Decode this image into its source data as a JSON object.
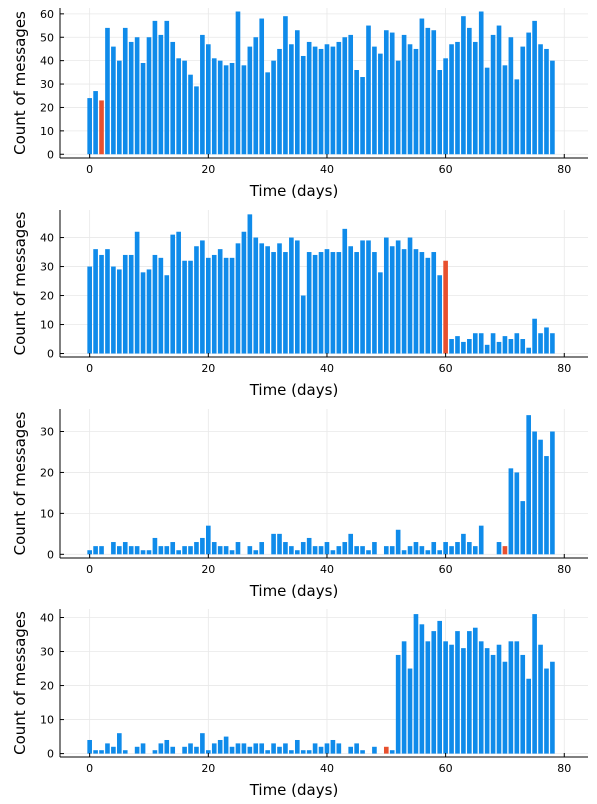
{
  "colors": {
    "bar": "#0f8bea",
    "highlight": "#e8502e"
  },
  "chart_data": [
    {
      "type": "bar",
      "xlabel": "Time (days)",
      "ylabel": "Count of messages",
      "xlim": [
        -5,
        84
      ],
      "ylim": [
        -1.6,
        62.5
      ],
      "xticks": [
        0,
        20,
        40,
        60,
        80
      ],
      "yticks": [
        0,
        10,
        20,
        30,
        40,
        50,
        60
      ],
      "grid": true,
      "legend": "none",
      "highlight_day": 2,
      "values": [
        24,
        27,
        23,
        54,
        46,
        40,
        54,
        48,
        50,
        39,
        50,
        57,
        51,
        57,
        48,
        41,
        40,
        34,
        29,
        51,
        47,
        41,
        40,
        38,
        39,
        61,
        38,
        46,
        50,
        58,
        35,
        40,
        45,
        59,
        47,
        53,
        42,
        48,
        46,
        45,
        47,
        46,
        48,
        50,
        51,
        36,
        33,
        55,
        46,
        43,
        53,
        52,
        40,
        51,
        47,
        45,
        58,
        54,
        53,
        36,
        41,
        47,
        48,
        59,
        54,
        48,
        61,
        37,
        51,
        55,
        38,
        50,
        32,
        46,
        52,
        57,
        47,
        45,
        40
      ]
    },
    {
      "type": "bar",
      "xlabel": "Time (days)",
      "ylabel": "Count of messages",
      "xlim": [
        -5,
        84
      ],
      "ylim": [
        -1.2,
        49.5
      ],
      "xticks": [
        0,
        20,
        40,
        60,
        80
      ],
      "yticks": [
        0,
        10,
        20,
        30,
        40
      ],
      "grid": true,
      "legend": "none",
      "highlight_day": 60,
      "values": [
        30,
        36,
        34,
        36,
        30,
        29,
        34,
        34,
        42,
        28,
        29,
        34,
        33,
        27,
        41,
        42,
        32,
        32,
        37,
        39,
        33,
        34,
        36,
        33,
        33,
        38,
        42,
        48,
        40,
        38,
        37,
        35,
        38,
        35,
        40,
        39,
        20,
        35,
        34,
        35,
        36,
        35,
        35,
        43,
        37,
        35,
        39,
        39,
        35,
        28,
        40,
        37,
        39,
        36,
        40,
        36,
        35,
        33,
        35,
        27,
        32,
        5,
        6,
        4,
        5,
        7,
        7,
        3,
        7,
        4,
        6,
        5,
        7,
        5,
        2,
        12,
        7,
        9,
        7
      ]
    },
    {
      "type": "bar",
      "xlabel": "Time (days)",
      "ylabel": "Count of messages",
      "xlim": [
        -5,
        84
      ],
      "ylim": [
        -0.9,
        35.5
      ],
      "xticks": [
        0,
        20,
        40,
        60,
        80
      ],
      "yticks": [
        0,
        10,
        20,
        30
      ],
      "grid": true,
      "legend": "none",
      "highlight_day": 70,
      "values": [
        1,
        2,
        2,
        0,
        3,
        2,
        3,
        2,
        2,
        1,
        1,
        4,
        2,
        2,
        3,
        1,
        2,
        2,
        3,
        4,
        7,
        3,
        2,
        2,
        1,
        3,
        0,
        2,
        1,
        3,
        0,
        5,
        5,
        3,
        2,
        1,
        3,
        4,
        2,
        2,
        3,
        1,
        2,
        3,
        5,
        2,
        2,
        1,
        3,
        0,
        2,
        2,
        6,
        1,
        2,
        3,
        2,
        1,
        3,
        1,
        3,
        2,
        3,
        5,
        3,
        2,
        7,
        0,
        0,
        3,
        2,
        21,
        20,
        13,
        34,
        30,
        28,
        24,
        30
      ]
    },
    {
      "type": "bar",
      "xlabel": "Time (days)",
      "ylabel": "Count of messages",
      "xlim": [
        -5,
        84
      ],
      "ylim": [
        -1.0,
        42.5
      ],
      "xticks": [
        0,
        20,
        40,
        60,
        80
      ],
      "yticks": [
        0,
        10,
        20,
        30,
        40
      ],
      "grid": true,
      "legend": "none",
      "highlight_day": 50,
      "values": [
        4,
        1,
        1,
        3,
        2,
        6,
        1,
        0,
        2,
        3,
        0,
        1,
        3,
        4,
        2,
        0,
        2,
        3,
        2,
        6,
        1,
        3,
        4,
        5,
        2,
        3,
        3,
        2,
        3,
        3,
        1,
        3,
        2,
        3,
        1,
        4,
        1,
        1,
        3,
        2,
        3,
        4,
        3,
        0,
        2,
        3,
        1,
        0,
        2,
        0,
        2,
        1,
        29,
        33,
        25,
        41,
        38,
        33,
        36,
        39,
        33,
        32,
        36,
        31,
        36,
        37,
        33,
        31,
        29,
        32,
        27,
        33,
        33,
        29,
        22,
        41,
        32,
        25,
        27
      ]
    }
  ]
}
